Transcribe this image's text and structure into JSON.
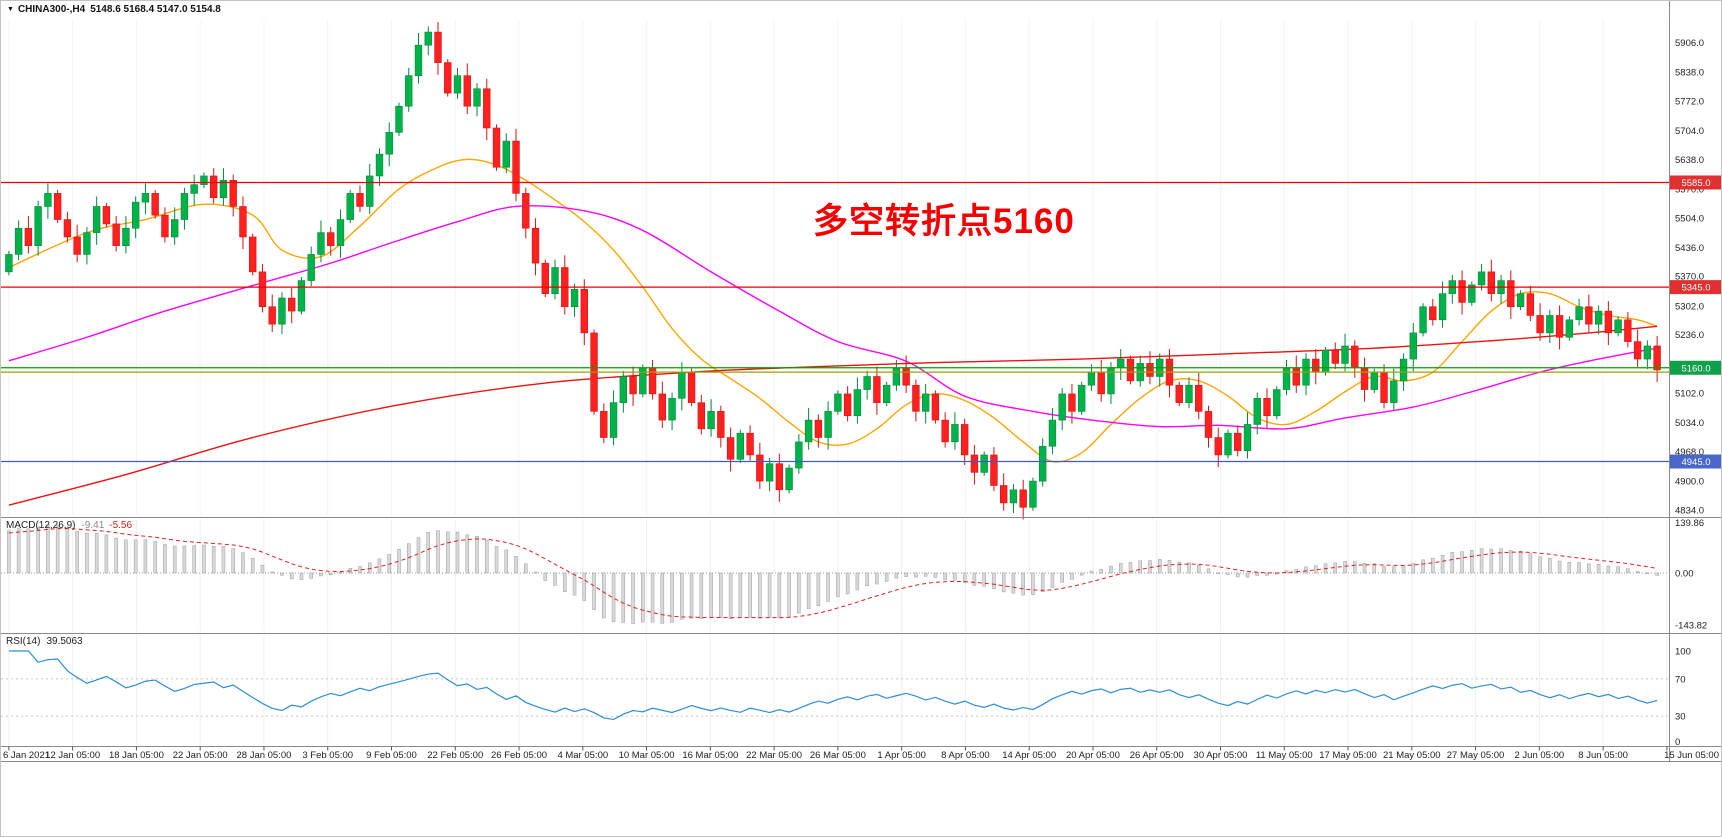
{
  "header": {
    "dropdown_icon": "▼",
    "symbol_text": "CHINA300-,H4",
    "ohlc_values": "5148.6 5168.4 5147.0 5154.8"
  },
  "chart_data": {
    "type": "candlestick",
    "symbol": "CHINA300-",
    "timeframe": "H4",
    "title": "CHINA300-,H4 5148.6 5168.4 5147.0 5154.8",
    "price_axis": {
      "min": 4820,
      "max": 5960,
      "ticks": [
        5906.0,
        5838.0,
        5772.0,
        5704.0,
        5638.0,
        5570.0,
        5504.0,
        5436.0,
        5370.0,
        5302.0,
        5236.0,
        5168.0,
        5102.0,
        5034.0,
        4968.0,
        4900.0,
        4834.0
      ]
    },
    "time_labels": [
      "6 Jan 2021",
      "12 Jan 05:00",
      "18 Jan 05:00",
      "22 Jan 05:00",
      "28 Jan 05:00",
      "3 Feb 05:00",
      "9 Feb 05:00",
      "22 Feb 05:00",
      "26 Feb 05:00",
      "4 Mar 05:00",
      "10 Mar 05:00",
      "16 Mar 05:00",
      "22 Mar 05:00",
      "26 Mar 05:00",
      "1 Apr 05:00",
      "8 Apr 05:00",
      "14 Apr 05:00",
      "20 Apr 05:00",
      "26 Apr 05:00",
      "30 Apr 05:00",
      "11 May 05:00",
      "17 May 05:00",
      "21 May 05:00",
      "27 May 05:00",
      "2 Jun 05:00",
      "8 Jun 05:00",
      "15 Jun 05:00"
    ],
    "first_open": 5380,
    "closes": [
      5420,
      5480,
      5440,
      5530,
      5560,
      5500,
      5460,
      5420,
      5470,
      5530,
      5490,
      5440,
      5480,
      5540,
      5560,
      5510,
      5460,
      5500,
      5560,
      5580,
      5600,
      5550,
      5590,
      5530,
      5460,
      5380,
      5300,
      5260,
      5320,
      5290,
      5360,
      5420,
      5470,
      5440,
      5500,
      5560,
      5530,
      5600,
      5650,
      5700,
      5760,
      5830,
      5900,
      5930,
      5860,
      5790,
      5830,
      5760,
      5800,
      5710,
      5620,
      5680,
      5560,
      5480,
      5400,
      5330,
      5390,
      5300,
      5340,
      5240,
      5060,
      5000,
      5080,
      5140,
      5100,
      5160,
      5100,
      5040,
      5090,
      5150,
      5080,
      5020,
      5060,
      5000,
      4950,
      5010,
      4960,
      4900,
      4940,
      4880,
      4930,
      4990,
      5040,
      5000,
      5060,
      5100,
      5050,
      5110,
      5140,
      5080,
      5120,
      5160,
      5120,
      5060,
      5100,
      5040,
      4990,
      5030,
      4960,
      4920,
      4960,
      4890,
      4850,
      4880,
      4840,
      4900,
      4980,
      5040,
      5100,
      5060,
      5120,
      5150,
      5100,
      5160,
      5180,
      5130,
      5170,
      5140,
      5180,
      5120,
      5080,
      5120,
      5060,
      5000,
      4960,
      5010,
      4970,
      5030,
      5090,
      5050,
      5110,
      5160,
      5120,
      5180,
      5150,
      5200,
      5170,
      5210,
      5160,
      5110,
      5150,
      5080,
      5130,
      5180,
      5240,
      5300,
      5270,
      5330,
      5360,
      5310,
      5350,
      5380,
      5330,
      5360,
      5300,
      5330,
      5280,
      5240,
      5280,
      5230,
      5270,
      5300,
      5260,
      5290,
      5240,
      5270,
      5220,
      5180,
      5210,
      5155
    ],
    "prehistory": {
      "start": 4680,
      "step": 18,
      "count": 40
    },
    "candle_colors": {
      "up_fill": "#00b24a",
      "up_stroke": "#008a39",
      "down_fill": "#ff2020",
      "down_stroke": "#d31414"
    },
    "moving_averages": [
      {
        "name": "ma-fast",
        "color": "#ffa500",
        "points": [
          [
            0,
            5390
          ],
          [
            8,
            5470
          ],
          [
            14,
            5500
          ],
          [
            20,
            5535
          ],
          [
            25,
            5510
          ],
          [
            28,
            5430
          ],
          [
            32,
            5415
          ],
          [
            36,
            5485
          ],
          [
            40,
            5570
          ],
          [
            44,
            5620
          ],
          [
            47,
            5638
          ],
          [
            50,
            5625
          ],
          [
            53,
            5590
          ],
          [
            56,
            5545
          ],
          [
            59,
            5495
          ],
          [
            62,
            5430
          ],
          [
            65,
            5345
          ],
          [
            68,
            5250
          ],
          [
            71,
            5180
          ],
          [
            74,
            5135
          ],
          [
            77,
            5090
          ],
          [
            80,
            5035
          ],
          [
            83,
            4990
          ],
          [
            86,
            4985
          ],
          [
            89,
            5020
          ],
          [
            92,
            5075
          ],
          [
            95,
            5100
          ],
          [
            98,
            5085
          ],
          [
            101,
            5045
          ],
          [
            104,
            4990
          ],
          [
            107,
            4945
          ],
          [
            110,
            4965
          ],
          [
            113,
            5030
          ],
          [
            116,
            5090
          ],
          [
            119,
            5130
          ],
          [
            122,
            5130
          ],
          [
            125,
            5095
          ],
          [
            128,
            5045
          ],
          [
            131,
            5030
          ],
          [
            134,
            5060
          ],
          [
            137,
            5105
          ],
          [
            140,
            5140
          ],
          [
            143,
            5130
          ],
          [
            146,
            5150
          ],
          [
            149,
            5220
          ],
          [
            152,
            5290
          ],
          [
            155,
            5330
          ],
          [
            158,
            5330
          ],
          [
            161,
            5300
          ],
          [
            164,
            5280
          ],
          [
            167,
            5270
          ],
          [
            169,
            5255
          ]
        ]
      },
      {
        "name": "ma-medium",
        "color": "#ff00ff",
        "points": [
          [
            0,
            5176
          ],
          [
            8,
            5230
          ],
          [
            16,
            5290
          ],
          [
            26,
            5355
          ],
          [
            33,
            5400
          ],
          [
            39,
            5445
          ],
          [
            46,
            5495
          ],
          [
            52,
            5530
          ],
          [
            59,
            5520
          ],
          [
            65,
            5475
          ],
          [
            72,
            5380
          ],
          [
            79,
            5290
          ],
          [
            85,
            5220
          ],
          [
            92,
            5175
          ],
          [
            98,
            5095
          ],
          [
            105,
            5060
          ],
          [
            111,
            5040
          ],
          [
            118,
            5025
          ],
          [
            124,
            5028
          ],
          [
            131,
            5020
          ],
          [
            137,
            5045
          ],
          [
            144,
            5070
          ],
          [
            150,
            5105
          ],
          [
            157,
            5150
          ],
          [
            163,
            5180
          ],
          [
            169,
            5205
          ]
        ]
      },
      {
        "name": "ma-slow",
        "color": "#ee1111",
        "points": [
          [
            0,
            4845
          ],
          [
            12,
            4915
          ],
          [
            25,
            5000
          ],
          [
            40,
            5075
          ],
          [
            55,
            5125
          ],
          [
            70,
            5150
          ],
          [
            81,
            5161
          ],
          [
            95,
            5172
          ],
          [
            110,
            5180
          ],
          [
            125,
            5192
          ],
          [
            140,
            5205
          ],
          [
            152,
            5222
          ],
          [
            162,
            5240
          ],
          [
            169,
            5255
          ]
        ]
      }
    ],
    "levels": [
      {
        "price": 5585.0,
        "color": "#e80000",
        "badge": "5585.0",
        "badge_color": "#e03030"
      },
      {
        "price": 5345.0,
        "color": "#e80000",
        "badge": "5345.0",
        "badge_color": "#e03030"
      },
      {
        "price": 5160.0,
        "color": "#00a000",
        "badge": "5160.0",
        "badge_color": "#11a04a"
      },
      {
        "price": 5150.0,
        "color": "#98a000",
        "badge": null,
        "badge_color": null
      },
      {
        "price": 4945.0,
        "color": "#3a5bd0",
        "badge": "4945.0",
        "badge_color": "#4a66c8"
      }
    ],
    "annotation": {
      "text": "多空转折点5160",
      "color": "#f50000"
    },
    "macd": {
      "label": "MACD(12,26,9)",
      "main_value": "-9.41",
      "signal_value": "-5.56",
      "axis_ticks": [
        139.86,
        0.0,
        -143.82
      ],
      "histogram_fill": "#d9d9d9",
      "histogram_stroke": "#9e9e9e",
      "signal_color": "#e02020"
    },
    "rsi": {
      "label": "RSI(14)",
      "value": "39.5063",
      "axis_ticks": [
        100,
        70,
        30,
        0
      ],
      "levels": [
        70,
        30
      ],
      "line_color": "#2f8fd6"
    }
  }
}
